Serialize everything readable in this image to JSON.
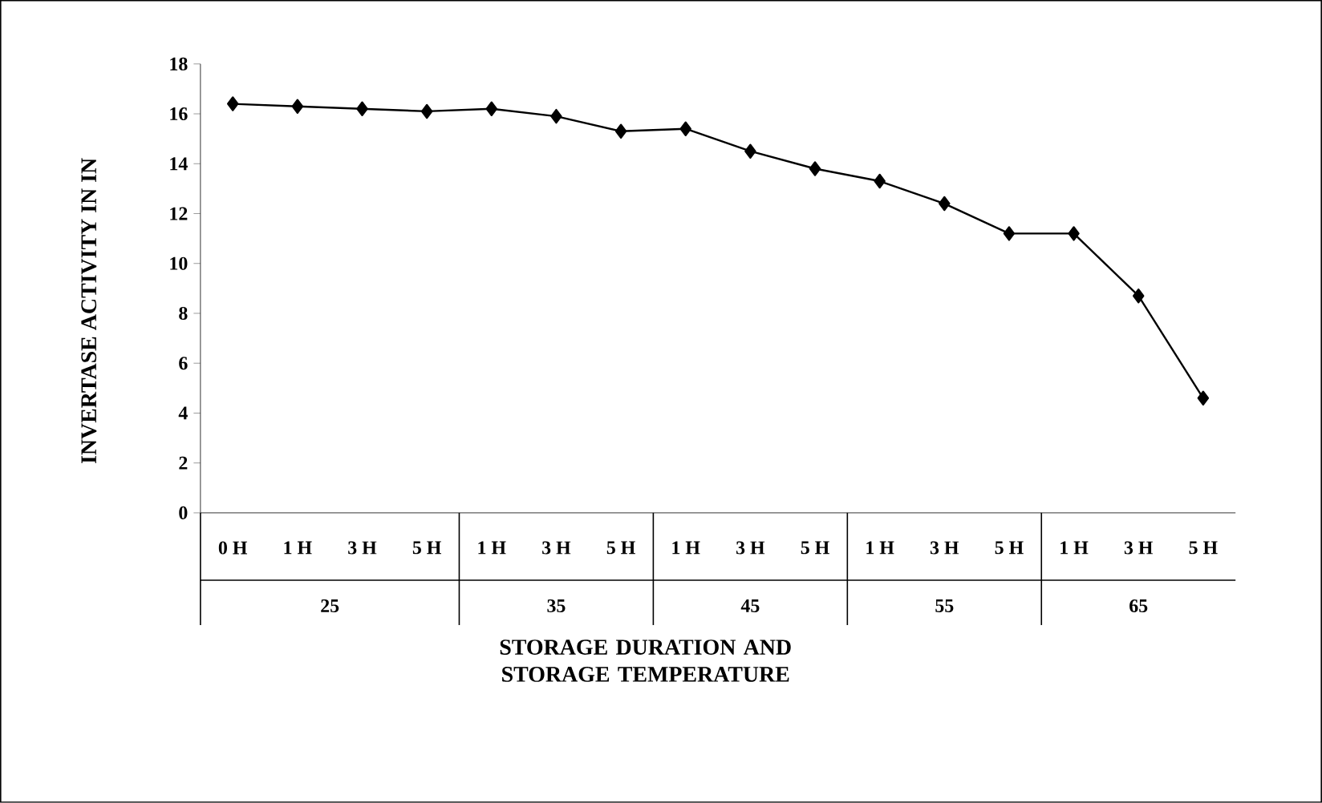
{
  "chart_data": {
    "type": "line",
    "xlabel": "STORAGE DURATION AND STORAGE TEMPERATURE",
    "ylabel": "INVERTASE ACTIVITY IN IN",
    "categories": [
      "0 H",
      "1 H",
      "3 H",
      "5 H",
      "1 H",
      "3 H",
      "5 H",
      "1 H",
      "3 H",
      "5 H",
      "1 H",
      "3 H",
      "5 H",
      "1 H",
      "3 H",
      "5 H"
    ],
    "values": [
      16.4,
      16.3,
      16.2,
      16.1,
      16.2,
      15.9,
      15.3,
      15.4,
      14.5,
      13.8,
      13.3,
      12.4,
      11.2,
      11.2,
      8.7,
      4.6
    ],
    "color": "#000000",
    "marker": "diamond",
    "line_style": "solid",
    "ylim": [
      0,
      18
    ],
    "yticks": [
      0,
      2,
      4,
      6,
      8,
      10,
      12,
      14,
      16,
      18
    ],
    "annotations": [
      "25",
      "35",
      "45",
      "55",
      "65"
    ]
  }
}
